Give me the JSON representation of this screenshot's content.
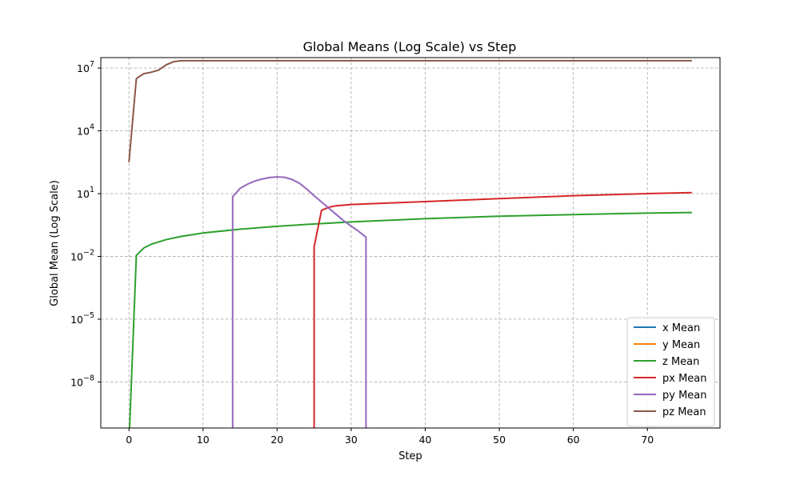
{
  "chart_data": {
    "type": "line",
    "title": "Global Means (Log Scale) vs Step",
    "xlabel": "Step",
    "ylabel": "Global Mean (Log Scale)",
    "yscale": "log",
    "xlim": [
      -3.8,
      79.8
    ],
    "ylim_log10": [
      -10.2,
      7.5
    ],
    "xticks": [
      0,
      10,
      20,
      30,
      40,
      50,
      60,
      70
    ],
    "xtick_labels": [
      "0",
      "10",
      "20",
      "30",
      "40",
      "50",
      "60",
      "70"
    ],
    "yticks_log10": [
      -8,
      -5,
      -2,
      1,
      4,
      7
    ],
    "ytick_labels": [
      {
        "base": "10",
        "exp": "−8"
      },
      {
        "base": "10",
        "exp": "−5"
      },
      {
        "base": "10",
        "exp": "−2"
      },
      {
        "base": "10",
        "exp": "1"
      },
      {
        "base": "10",
        "exp": "4"
      },
      {
        "base": "10",
        "exp": "7"
      }
    ],
    "grid": true,
    "legend_position": "lower right",
    "series": [
      {
        "name": "x Mean",
        "color": "#1f77b4",
        "points": []
      },
      {
        "name": "y Mean",
        "color": "#ff7f0e",
        "points": []
      },
      {
        "name": "z Mean",
        "color": "#2ca02c",
        "points": [
          [
            0,
            -11
          ],
          [
            1,
            -1.95
          ],
          [
            2,
            -1.6
          ],
          [
            3,
            -1.42
          ],
          [
            5,
            -1.2
          ],
          [
            7,
            -1.05
          ],
          [
            10,
            -0.88
          ],
          [
            15,
            -0.7
          ],
          [
            20,
            -0.56
          ],
          [
            25,
            -0.45
          ],
          [
            30,
            -0.35
          ],
          [
            40,
            -0.2
          ],
          [
            50,
            -0.08
          ],
          [
            60,
            0.0
          ],
          [
            70,
            0.07
          ],
          [
            76,
            0.1
          ]
        ]
      },
      {
        "name": "px Mean",
        "color": "#d62728",
        "points": [
          [
            25,
            -11
          ],
          [
            25,
            -1.55
          ],
          [
            26,
            0.2
          ],
          [
            27,
            0.35
          ],
          [
            28,
            0.42
          ],
          [
            30,
            0.48
          ],
          [
            40,
            0.62
          ],
          [
            50,
            0.76
          ],
          [
            60,
            0.9
          ],
          [
            70,
            1.0
          ],
          [
            76,
            1.05
          ]
        ]
      },
      {
        "name": "py Mean",
        "color": "#9467bd",
        "points": [
          [
            14,
            -11
          ],
          [
            14,
            0.85
          ],
          [
            15,
            1.25
          ],
          [
            16,
            1.45
          ],
          [
            17,
            1.6
          ],
          [
            18,
            1.7
          ],
          [
            19,
            1.77
          ],
          [
            20,
            1.8
          ],
          [
            21,
            1.78
          ],
          [
            22,
            1.68
          ],
          [
            23,
            1.5
          ],
          [
            24,
            1.22
          ],
          [
            25,
            0.9
          ],
          [
            26,
            0.6
          ],
          [
            27,
            0.3
          ],
          [
            28,
            0.0
          ],
          [
            29,
            -0.3
          ],
          [
            30,
            -0.55
          ],
          [
            31,
            -0.8
          ],
          [
            32,
            -1.08
          ],
          [
            32,
            -11
          ]
        ]
      },
      {
        "name": "pz Mean",
        "color": "#8c564b",
        "points": [
          [
            0,
            2.5
          ],
          [
            1,
            6.5
          ],
          [
            2,
            6.73
          ],
          [
            3,
            6.8
          ],
          [
            4,
            6.9
          ],
          [
            5,
            7.15
          ],
          [
            6,
            7.3
          ],
          [
            7,
            7.35
          ],
          [
            10,
            7.35
          ],
          [
            20,
            7.35
          ],
          [
            30,
            7.35
          ],
          [
            40,
            7.35
          ],
          [
            50,
            7.35
          ],
          [
            60,
            7.35
          ],
          [
            70,
            7.35
          ],
          [
            76,
            7.35
          ]
        ]
      }
    ]
  }
}
